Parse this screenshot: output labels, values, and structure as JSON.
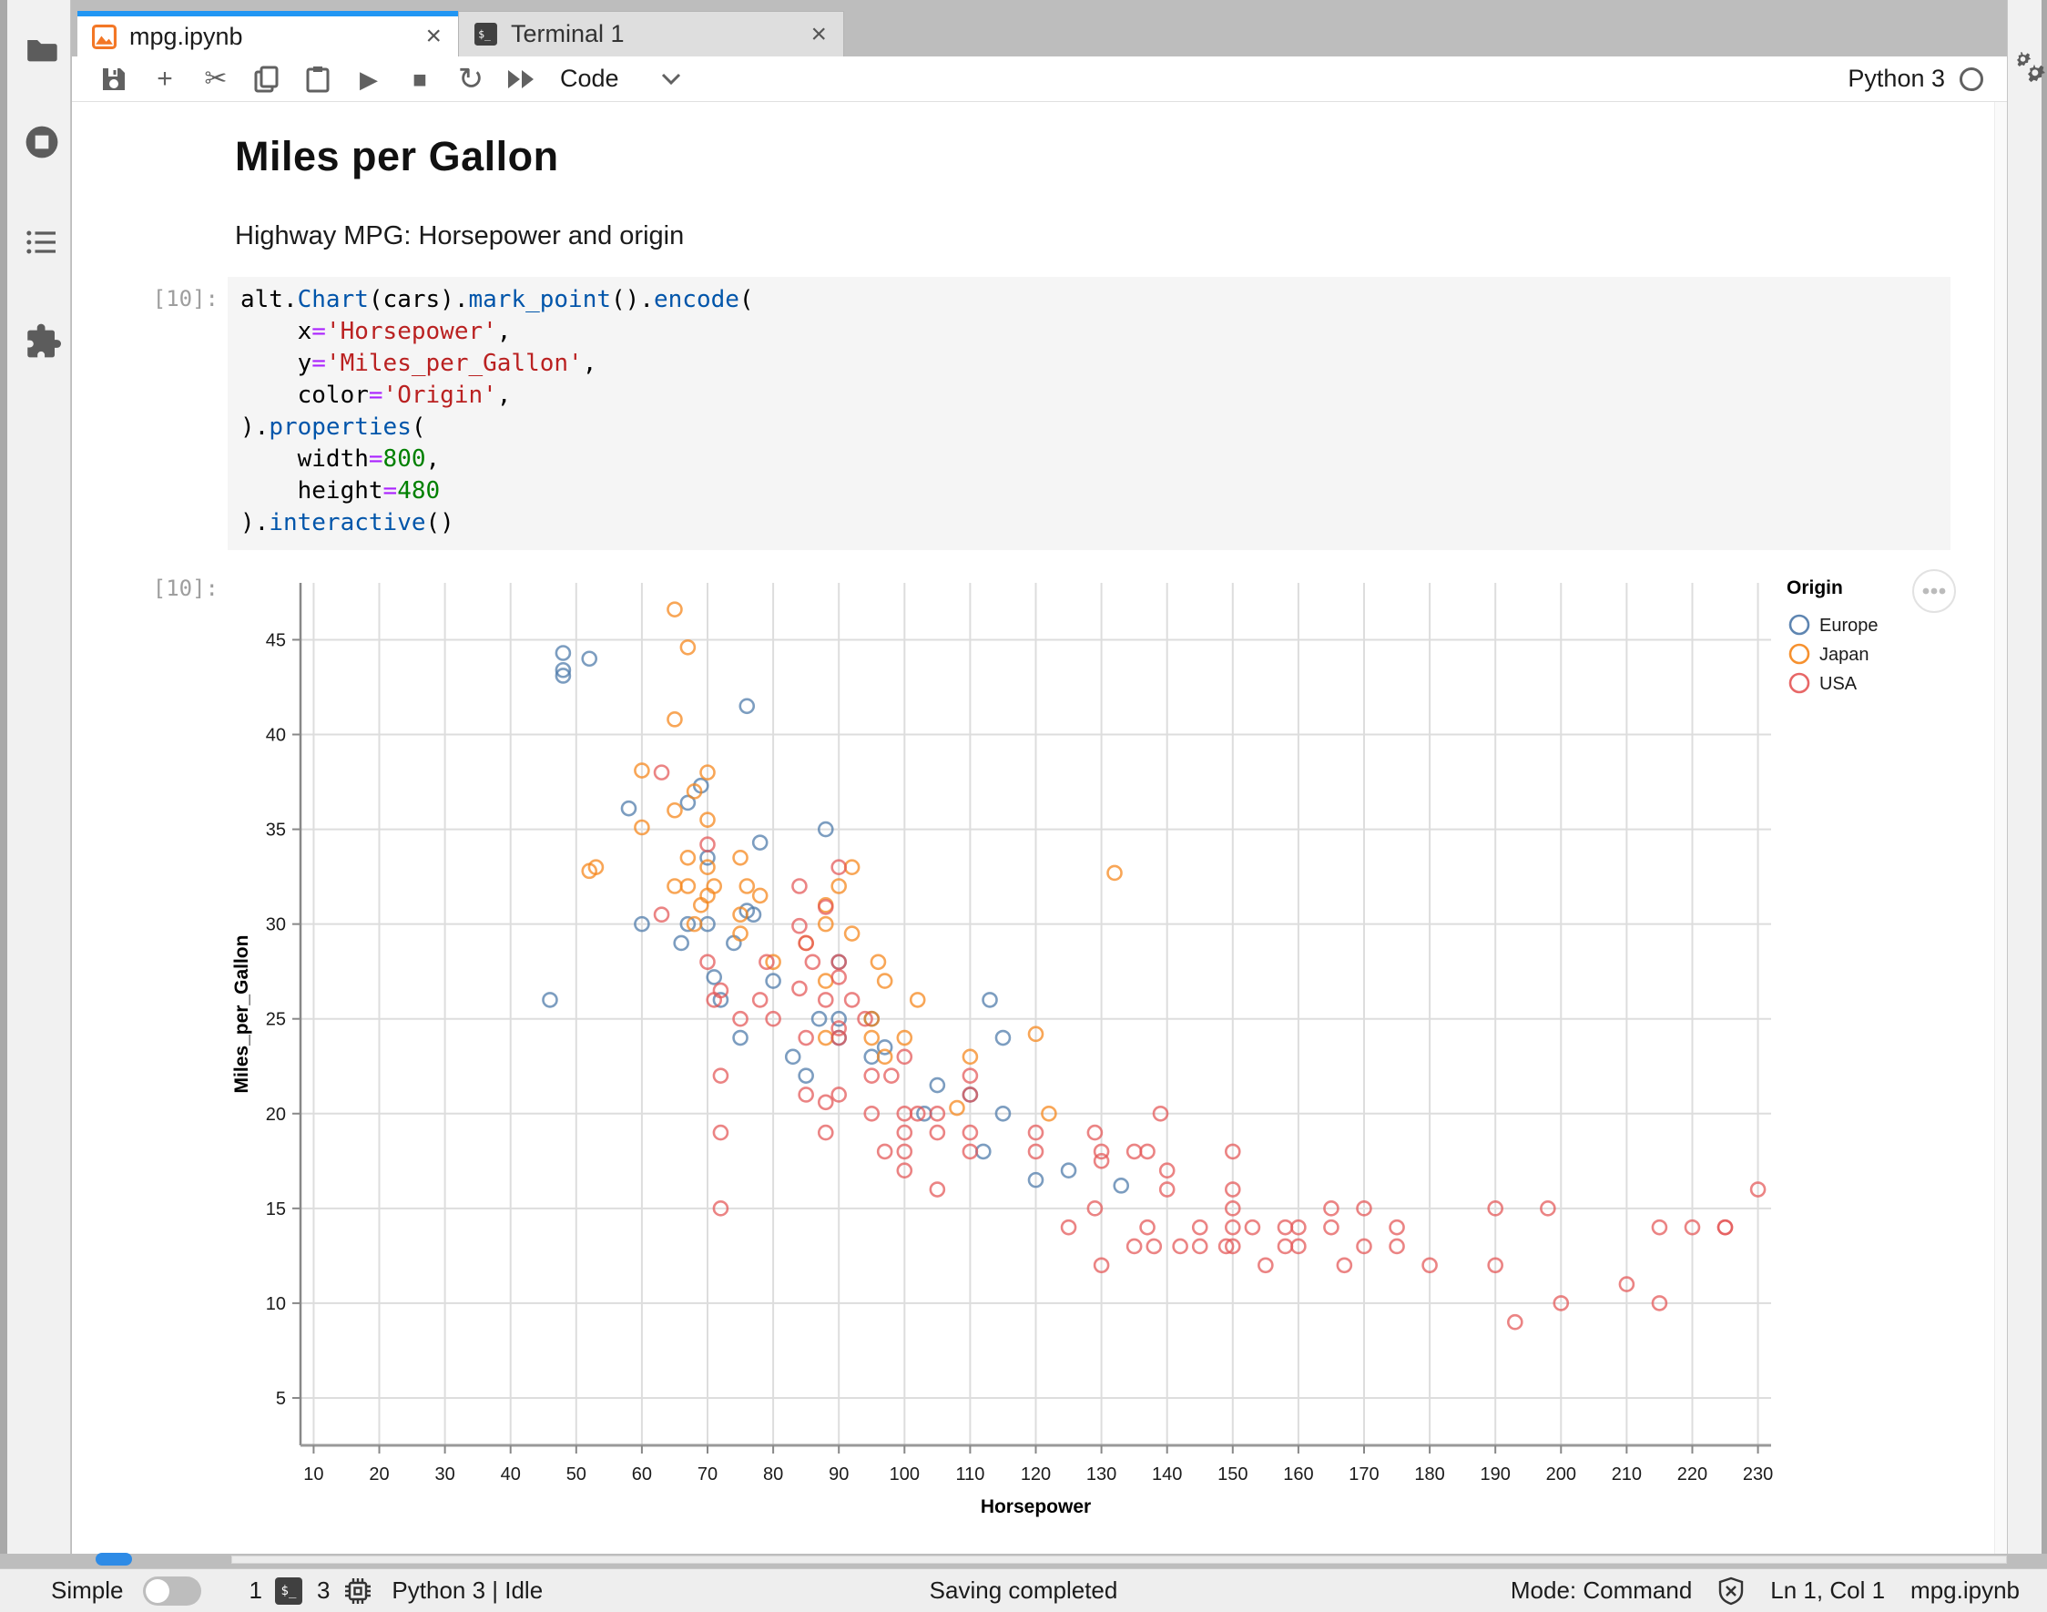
{
  "tabs": [
    {
      "label": "mpg.ipynb",
      "icon": "notebook-icon",
      "close_glyph": "×",
      "active": true
    },
    {
      "label": "Terminal 1",
      "icon": "terminal-icon",
      "close_glyph": "×",
      "active": false
    }
  ],
  "left_activity_bar": {
    "icons": [
      "file-browser-icon",
      "running-kernels-icon",
      "table-of-contents-icon",
      "extension-manager-icon"
    ]
  },
  "right_activity_bar": {
    "icons": [
      "property-inspector-gears-icon"
    ]
  },
  "toolbar": {
    "icons": [
      "save-icon",
      "add-cell-icon",
      "cut-cells-icon",
      "copy-cells-icon",
      "paste-cells-icon",
      "run-icon",
      "stop-icon",
      "restart-kernel-icon",
      "run-all-icon"
    ],
    "cell_type": "Code",
    "kernel_name": "Python 3",
    "restart_glyph": "↻",
    "run_glyph": "▶",
    "stop_glyph": "■",
    "cut_glyph": "✂",
    "plus_glyph": "+"
  },
  "notebook": {
    "heading": "Miles per Gallon",
    "subtitle": "Highway MPG: Horsepower and origin",
    "in_prompt": "[10]:",
    "out_prompt": "[10]:",
    "code_lines": [
      [
        [
          "p",
          "alt."
        ],
        [
          "m",
          "Chart"
        ],
        [
          "p",
          "(cars)."
        ],
        [
          "m",
          "mark_point"
        ],
        [
          "p",
          "()."
        ],
        [
          "m",
          "encode"
        ],
        [
          "p",
          "("
        ]
      ],
      [
        [
          "p",
          "    x"
        ],
        [
          "o",
          "="
        ],
        [
          "s",
          "'Horsepower'"
        ],
        [
          "p",
          ","
        ]
      ],
      [
        [
          "p",
          "    y"
        ],
        [
          "o",
          "="
        ],
        [
          "s",
          "'Miles_per_Gallon'"
        ],
        [
          "p",
          ","
        ]
      ],
      [
        [
          "p",
          "    color"
        ],
        [
          "o",
          "="
        ],
        [
          "s",
          "'Origin'"
        ],
        [
          "p",
          ","
        ]
      ],
      [
        [
          "p",
          ")."
        ],
        [
          "m",
          "properties"
        ],
        [
          "p",
          "("
        ]
      ],
      [
        [
          "p",
          "    width"
        ],
        [
          "o",
          "="
        ],
        [
          "n",
          "800"
        ],
        [
          "p",
          ","
        ]
      ],
      [
        [
          "p",
          "    height"
        ],
        [
          "o",
          "="
        ],
        [
          "n",
          "480"
        ]
      ],
      [
        [
          "p",
          ")."
        ],
        [
          "m",
          "interactive"
        ],
        [
          "p",
          "()"
        ]
      ]
    ]
  },
  "chart_data": {
    "type": "scatter",
    "title": "",
    "xlabel": "Horsepower",
    "ylabel": "Miles_per_Gallon",
    "legend_title": "Origin",
    "legend_position": "top-right",
    "grid": true,
    "actions_menu_glyph": "•••",
    "x_ticks": [
      10,
      20,
      30,
      40,
      50,
      60,
      70,
      80,
      90,
      100,
      110,
      120,
      130,
      140,
      150,
      160,
      170,
      180,
      190,
      200,
      210,
      220,
      230
    ],
    "y_ticks": [
      5,
      10,
      15,
      20,
      25,
      30,
      35,
      40,
      45
    ],
    "xlim": [
      8,
      232
    ],
    "ylim": [
      2.5,
      48
    ],
    "point_style": {
      "shape": "open-circle",
      "opacity": 0.73
    },
    "series": [
      {
        "name": "Europe",
        "color": "#4c78a8",
        "points": [
          [
            46,
            26
          ],
          [
            48,
            44.3
          ],
          [
            48,
            43.4
          ],
          [
            48,
            43.1
          ],
          [
            52,
            44
          ],
          [
            58,
            36.1
          ],
          [
            60,
            30
          ],
          [
            66,
            29
          ],
          [
            67,
            36.4
          ],
          [
            67,
            30
          ],
          [
            69,
            37.3
          ],
          [
            70,
            30
          ],
          [
            70,
            33.5
          ],
          [
            71,
            27.2
          ],
          [
            72,
            26
          ],
          [
            74,
            29
          ],
          [
            75,
            24
          ],
          [
            76,
            41.5
          ],
          [
            76,
            30.7
          ],
          [
            77,
            30.5
          ],
          [
            78,
            34.3
          ],
          [
            80,
            27
          ],
          [
            83,
            23
          ],
          [
            85,
            22
          ],
          [
            87,
            25
          ],
          [
            88,
            35
          ],
          [
            90,
            24
          ],
          [
            90,
            28
          ],
          [
            90,
            25
          ],
          [
            95,
            23
          ],
          [
            95,
            25
          ],
          [
            97,
            23.5
          ],
          [
            103,
            20
          ],
          [
            105,
            21.5
          ],
          [
            110,
            21
          ],
          [
            112,
            18
          ],
          [
            113,
            26
          ],
          [
            115,
            20
          ],
          [
            115,
            24
          ],
          [
            120,
            16.5
          ],
          [
            125,
            17
          ],
          [
            133,
            16.2
          ]
        ]
      },
      {
        "name": "Japan",
        "color": "#f58518",
        "points": [
          [
            52,
            32.8
          ],
          [
            53,
            33
          ],
          [
            60,
            38.1
          ],
          [
            60,
            35.1
          ],
          [
            65,
            46.6
          ],
          [
            65,
            40.8
          ],
          [
            65,
            36
          ],
          [
            65,
            32
          ],
          [
            67,
            44.6
          ],
          [
            67,
            33.5
          ],
          [
            67,
            32
          ],
          [
            68,
            37
          ],
          [
            68,
            30
          ],
          [
            69,
            31
          ],
          [
            70,
            38
          ],
          [
            70,
            35.5
          ],
          [
            70,
            33
          ],
          [
            70,
            31.5
          ],
          [
            71,
            32
          ],
          [
            75,
            33.5
          ],
          [
            75,
            30.5
          ],
          [
            75,
            29.5
          ],
          [
            76,
            32
          ],
          [
            78,
            31.5
          ],
          [
            80,
            28
          ],
          [
            85,
            29
          ],
          [
            88,
            31
          ],
          [
            88,
            30
          ],
          [
            88,
            27
          ],
          [
            88,
            24
          ],
          [
            90,
            32
          ],
          [
            92,
            33
          ],
          [
            92,
            29.5
          ],
          [
            95,
            25
          ],
          [
            95,
            24
          ],
          [
            96,
            28
          ],
          [
            97,
            27
          ],
          [
            97,
            23
          ],
          [
            100,
            24
          ],
          [
            102,
            26
          ],
          [
            108,
            20.3
          ],
          [
            110,
            23
          ],
          [
            120,
            24.2
          ],
          [
            122,
            20
          ],
          [
            132,
            32.7
          ]
        ]
      },
      {
        "name": "USA",
        "color": "#e45756",
        "points": [
          [
            130,
            18
          ],
          [
            165,
            15
          ],
          [
            150,
            18
          ],
          [
            150,
            16
          ],
          [
            140,
            17
          ],
          [
            198,
            15
          ],
          [
            220,
            14
          ],
          [
            215,
            14
          ],
          [
            225,
            14
          ],
          [
            190,
            15
          ],
          [
            170,
            15
          ],
          [
            160,
            14
          ],
          [
            150,
            15
          ],
          [
            225,
            14
          ],
          [
            215,
            10
          ],
          [
            200,
            10
          ],
          [
            210,
            11
          ],
          [
            193,
            9
          ],
          [
            190,
            12
          ],
          [
            180,
            12
          ],
          [
            170,
            13
          ],
          [
            175,
            13
          ],
          [
            175,
            14
          ],
          [
            167,
            12
          ],
          [
            165,
            14
          ],
          [
            160,
            13
          ],
          [
            158,
            13
          ],
          [
            158,
            14
          ],
          [
            155,
            12
          ],
          [
            153,
            14
          ],
          [
            150,
            14
          ],
          [
            150,
            13
          ],
          [
            149,
            13
          ],
          [
            145,
            13
          ],
          [
            145,
            14
          ],
          [
            142,
            13
          ],
          [
            140,
            16
          ],
          [
            139,
            20
          ],
          [
            138,
            13
          ],
          [
            137,
            14
          ],
          [
            137,
            18
          ],
          [
            135,
            18
          ],
          [
            135,
            13
          ],
          [
            130,
            17.5
          ],
          [
            130,
            12
          ],
          [
            129,
            19
          ],
          [
            129,
            15
          ],
          [
            125,
            14
          ],
          [
            120,
            19
          ],
          [
            120,
            18
          ],
          [
            110,
            18
          ],
          [
            110,
            19
          ],
          [
            110,
            21
          ],
          [
            110,
            22
          ],
          [
            105,
            16
          ],
          [
            105,
            19
          ],
          [
            105,
            20
          ],
          [
            102,
            20
          ],
          [
            100,
            19
          ],
          [
            100,
            18
          ],
          [
            100,
            17
          ],
          [
            100,
            23
          ],
          [
            100,
            20
          ],
          [
            98,
            22
          ],
          [
            97,
            18
          ],
          [
            95,
            22
          ],
          [
            95,
            20
          ],
          [
            94,
            25
          ],
          [
            92,
            26
          ],
          [
            90,
            21
          ],
          [
            90,
            24
          ],
          [
            90,
            24.5
          ],
          [
            90,
            27.2
          ],
          [
            90,
            28
          ],
          [
            90,
            33
          ],
          [
            88,
            19
          ],
          [
            88,
            26
          ],
          [
            88,
            20.6
          ],
          [
            88,
            30.9
          ],
          [
            86,
            28
          ],
          [
            85,
            21
          ],
          [
            85,
            24
          ],
          [
            85,
            29
          ],
          [
            84,
            26.6
          ],
          [
            84,
            29.9
          ],
          [
            84,
            32
          ],
          [
            80,
            25
          ],
          [
            79,
            28
          ],
          [
            78,
            26
          ],
          [
            75,
            25
          ],
          [
            72,
            22
          ],
          [
            72,
            19
          ],
          [
            72,
            26.5
          ],
          [
            72,
            15
          ],
          [
            71,
            26
          ],
          [
            70,
            28
          ],
          [
            70,
            34.2
          ],
          [
            63,
            38
          ],
          [
            63,
            30.5
          ],
          [
            230,
            16
          ]
        ]
      }
    ]
  },
  "statusbar": {
    "simple_label": "Simple",
    "terminals_count": "1",
    "terminal_badge": "$_",
    "kernels_count": "3",
    "kernel_status": "Python 3 | Idle",
    "message": "Saving completed",
    "mode": "Mode: Command",
    "cursor": "Ln 1, Col 1",
    "filename": "mpg.ipynb"
  }
}
